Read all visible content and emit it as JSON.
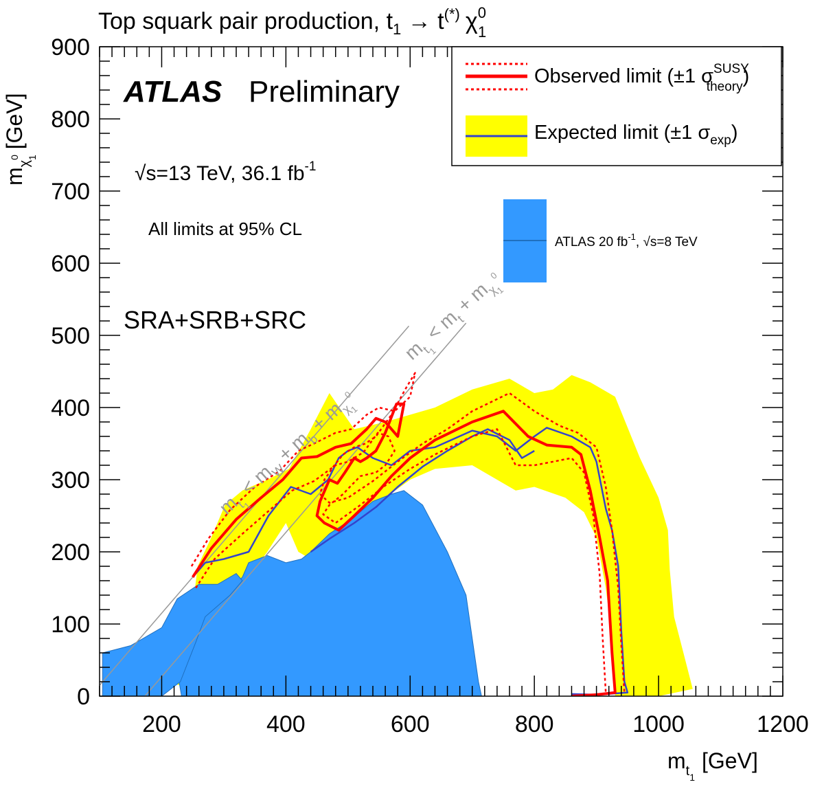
{
  "chart_data": {
    "type": "exclusion-contour",
    "title": {
      "prefix": "Top squark pair production, ",
      "stop": "t",
      "stop_sub": "1",
      "arrow": " → t",
      "tstar": "(*)",
      "chi": "χ",
      "chi_sup": "0",
      "chi_sub": "1"
    },
    "xlabel": {
      "main": "m",
      "sub": "t",
      "subsub": "1",
      "unit": "[GeV]"
    },
    "ylabel": {
      "main": "m",
      "sub": "χ",
      "subsup": "0",
      "subsub": "1",
      "unit": "[GeV]"
    },
    "xlim": [
      100,
      1200
    ],
    "ylim": [
      0,
      900
    ],
    "xticks": [
      200,
      400,
      600,
      800,
      1000,
      1200
    ],
    "xtick_labels": [
      "200",
      "400",
      "600",
      "800",
      "1000",
      "1200"
    ],
    "yticks": [
      0,
      100,
      200,
      300,
      400,
      500,
      600,
      700,
      800,
      900
    ],
    "ytick_labels": [
      "0",
      "100",
      "200",
      "300",
      "400",
      "500",
      "600",
      "700",
      "800",
      "900"
    ],
    "annotations": {
      "atlas": "ATLAS",
      "preliminary": "Preliminary",
      "energy_prefix": "√s=13 TeV, 36.1 fb",
      "energy_sup": "-1",
      "cl": "All limits at 95% CL",
      "regions": "SRA+SRB+SRC"
    },
    "legend": {
      "placement": "top-right",
      "observed": {
        "label": "Observed limit (±1 σ",
        "sup": "SUSY",
        "sub": "theory",
        "close": ")",
        "color": "#ff0000"
      },
      "expected": {
        "label": "Expected limit (±1 σ",
        "sub": "exp",
        "close": ")",
        "line_color": "#3344cc",
        "band_color": "#ffff00"
      },
      "prior": {
        "label": "ATLAS 20 fb",
        "sup": "-1",
        "suffix": ", √s=8 TeV",
        "color": "#3399ff"
      }
    },
    "kinematic_lines": [
      {
        "name": "mt-line",
        "label": "m",
        "label_sub": "t",
        "label_subsub": "1",
        "label_rest": " < m",
        "label_t": "t",
        "label_end": " + m",
        "label_chi": "χ",
        "label_chi_sub": "1",
        "label_chi_sup": "0",
        "offset_gev": 173,
        "x_range": [
          173,
          690
        ],
        "color": "#999999"
      },
      {
        "name": "mwb-line",
        "label": "m",
        "label_sub": "t",
        "label_subsub": "1",
        "label_rest": " < m",
        "label_w": "W",
        "label_mid": " + m",
        "label_b": "b",
        "label_end": " + m",
        "label_chi": "χ",
        "label_chi_sub": "1",
        "label_chi_sup": "0",
        "offset_gev": 85,
        "x_range": [
          85,
          598
        ],
        "color": "#999999"
      }
    ],
    "series": [
      {
        "name": "Expected limit band (±1σ exp)",
        "color": "#ffff00",
        "points": [
          [
            205,
            20
          ],
          [
            240,
            40
          ],
          [
            248,
            110
          ],
          [
            258,
            180
          ],
          [
            280,
            220
          ],
          [
            302,
            265
          ],
          [
            330,
            285
          ],
          [
            370,
            300
          ],
          [
            405,
            315
          ],
          [
            440,
            370
          ],
          [
            470,
            420
          ],
          [
            510,
            370
          ],
          [
            560,
            380
          ],
          [
            600,
            390
          ],
          [
            640,
            400
          ],
          [
            700,
            425
          ],
          [
            760,
            440
          ],
          [
            800,
            420
          ],
          [
            830,
            425
          ],
          [
            860,
            445
          ],
          [
            890,
            435
          ],
          [
            930,
            415
          ],
          [
            970,
            330
          ],
          [
            1000,
            275
          ],
          [
            1015,
            230
          ],
          [
            1018,
            175
          ],
          [
            1025,
            110
          ],
          [
            1040,
            60
          ],
          [
            1055,
            10
          ],
          [
            1000,
            0
          ],
          [
            930,
            0
          ],
          [
            925,
            80
          ],
          [
            915,
            150
          ],
          [
            900,
            220
          ],
          [
            880,
            255
          ],
          [
            850,
            275
          ],
          [
            800,
            290
          ],
          [
            770,
            285
          ],
          [
            700,
            320
          ],
          [
            640,
            315
          ],
          [
            600,
            300
          ],
          [
            560,
            275
          ],
          [
            520,
            250
          ],
          [
            480,
            205
          ],
          [
            440,
            190
          ],
          [
            420,
            200
          ],
          [
            400,
            240
          ],
          [
            370,
            200
          ],
          [
            340,
            165
          ],
          [
            320,
            140
          ],
          [
            290,
            110
          ],
          [
            270,
            75
          ],
          [
            250,
            45
          ],
          [
            230,
            15
          ]
        ]
      },
      {
        "name": "Expected limit",
        "color": "#3344cc",
        "points": [
          [
            250,
            165
          ],
          [
            270,
            185
          ],
          [
            300,
            190
          ],
          [
            340,
            200
          ],
          [
            372,
            250
          ],
          [
            408,
            290
          ],
          [
            440,
            280
          ],
          [
            468,
            300
          ],
          [
            485,
            330
          ],
          [
            500,
            340
          ],
          [
            515,
            345
          ],
          [
            540,
            330
          ],
          [
            570,
            320
          ],
          [
            600,
            340
          ],
          [
            640,
            345
          ],
          [
            700,
            368
          ],
          [
            740,
            360
          ],
          [
            770,
            340
          ],
          [
            800,
            360
          ],
          [
            820,
            372
          ],
          [
            860,
            360
          ],
          [
            890,
            345
          ],
          [
            900,
            325
          ],
          [
            915,
            260
          ],
          [
            925,
            230
          ],
          [
            935,
            180
          ],
          [
            940,
            90
          ],
          [
            945,
            20
          ],
          [
            950,
            5
          ],
          [
            900,
            2
          ],
          [
            860,
            3
          ]
        ]
      },
      {
        "name": "Expected limit (lower branch)",
        "color": "#3344cc",
        "points": [
          [
            440,
            200
          ],
          [
            470,
            218
          ],
          [
            510,
            240
          ],
          [
            545,
            262
          ],
          [
            580,
            290
          ],
          [
            620,
            318
          ],
          [
            660,
            340
          ],
          [
            700,
            360
          ],
          [
            725,
            370
          ],
          [
            760,
            355
          ],
          [
            780,
            330
          ],
          [
            800,
            340
          ]
        ]
      },
      {
        "name": "Observed limit",
        "color": "#ff0000",
        "points": [
          [
            250,
            165
          ],
          [
            280,
            205
          ],
          [
            320,
            245
          ],
          [
            360,
            275
          ],
          [
            395,
            300
          ],
          [
            425,
            330
          ],
          [
            450,
            332
          ],
          [
            480,
            345
          ],
          [
            505,
            350
          ],
          [
            530,
            370
          ],
          [
            545,
            385
          ],
          [
            560,
            380
          ],
          [
            580,
            360
          ],
          [
            590,
            405
          ],
          [
            578,
            405
          ],
          [
            560,
            365
          ],
          [
            545,
            340
          ],
          [
            530,
            330
          ],
          [
            520,
            325
          ],
          [
            510,
            330
          ],
          [
            495,
            310
          ],
          [
            483,
            295
          ],
          [
            470,
            300
          ],
          [
            455,
            270
          ],
          [
            450,
            250
          ],
          [
            462,
            240
          ],
          [
            485,
            230
          ],
          [
            510,
            250
          ],
          [
            540,
            275
          ],
          [
            570,
            305
          ],
          [
            600,
            330
          ],
          [
            640,
            355
          ],
          [
            700,
            380
          ],
          [
            750,
            395
          ],
          [
            790,
            360
          ],
          [
            820,
            348
          ],
          [
            860,
            345
          ],
          [
            875,
            335
          ],
          [
            890,
            285
          ],
          [
            905,
            220
          ],
          [
            918,
            160
          ],
          [
            925,
            60
          ],
          [
            930,
            5
          ],
          [
            900,
            2
          ],
          [
            860,
            0
          ]
        ]
      },
      {
        "name": "Observed limit −1σ theory",
        "color": "#ff0000",
        "dashed": true,
        "points": [
          [
            255,
            150
          ],
          [
            285,
            190
          ],
          [
            330,
            225
          ],
          [
            370,
            255
          ],
          [
            410,
            285
          ],
          [
            445,
            298
          ],
          [
            480,
            320
          ],
          [
            500,
            325
          ],
          [
            525,
            338
          ],
          [
            548,
            365
          ],
          [
            565,
            360
          ],
          [
            575,
            340
          ],
          [
            560,
            320
          ],
          [
            545,
            310
          ],
          [
            520,
            305
          ],
          [
            503,
            290
          ],
          [
            492,
            280
          ],
          [
            470,
            265
          ],
          [
            460,
            252
          ],
          [
            480,
            240
          ],
          [
            520,
            265
          ],
          [
            560,
            292
          ],
          [
            600,
            315
          ],
          [
            640,
            335
          ],
          [
            700,
            360
          ],
          [
            740,
            370
          ],
          [
            770,
            320
          ],
          [
            800,
            320
          ],
          [
            830,
            325
          ],
          [
            860,
            330
          ],
          [
            880,
            310
          ],
          [
            895,
            250
          ],
          [
            905,
            170
          ],
          [
            910,
            80
          ],
          [
            915,
            5
          ]
        ]
      },
      {
        "name": "Observed limit +1σ theory",
        "color": "#ff0000",
        "dashed": true,
        "points": [
          [
            248,
            180
          ],
          [
            275,
            218
          ],
          [
            310,
            258
          ],
          [
            350,
            290
          ],
          [
            390,
            312
          ],
          [
            420,
            340
          ],
          [
            445,
            350
          ],
          [
            480,
            365
          ],
          [
            505,
            370
          ],
          [
            530,
            390
          ],
          [
            550,
            400
          ],
          [
            575,
            395
          ],
          [
            600,
            415
          ],
          [
            608,
            448
          ],
          [
            592,
            425
          ],
          [
            570,
            390
          ],
          [
            545,
            360
          ],
          [
            528,
            350
          ],
          [
            510,
            345
          ],
          [
            492,
            335
          ],
          [
            478,
            320
          ],
          [
            462,
            300
          ],
          [
            455,
            280
          ],
          [
            470,
            268
          ],
          [
            500,
            275
          ],
          [
            540,
            298
          ],
          [
            580,
            325
          ],
          [
            620,
            350
          ],
          [
            660,
            370
          ],
          [
            700,
            395
          ],
          [
            760,
            420
          ],
          [
            800,
            395
          ],
          [
            840,
            375
          ],
          [
            870,
            365
          ],
          [
            900,
            345
          ],
          [
            915,
            290
          ],
          [
            925,
            230
          ],
          [
            935,
            150
          ],
          [
            940,
            70
          ],
          [
            945,
            5
          ]
        ]
      },
      {
        "name": "ATLAS 20 fb-1, √s=8 TeV",
        "color": "#3399ff",
        "points": [
          [
            180,
            0
          ],
          [
            195,
            0
          ],
          [
            200,
            20
          ],
          [
            230,
            60
          ],
          [
            262,
            110
          ],
          [
            300,
            140
          ],
          [
            330,
            165
          ],
          [
            340,
            185
          ],
          [
            370,
            195
          ],
          [
            400,
            185
          ],
          [
            425,
            190
          ],
          [
            440,
            200
          ],
          [
            470,
            225
          ],
          [
            505,
            245
          ],
          [
            540,
            270
          ],
          [
            570,
            280
          ],
          [
            590,
            285
          ],
          [
            620,
            265
          ],
          [
            660,
            200
          ],
          [
            690,
            140
          ],
          [
            700,
            80
          ],
          [
            710,
            20
          ],
          [
            715,
            0
          ],
          [
            232,
            0
          ],
          [
            228,
            20
          ],
          [
            200,
            30
          ],
          [
            190,
            20
          ]
        ]
      },
      {
        "name": "ATLAS 20 fb-1 region (low mass)",
        "color": "#3399ff",
        "points": [
          [
            105,
            0
          ],
          [
            105,
            60
          ],
          [
            150,
            70
          ],
          [
            200,
            95
          ],
          [
            225,
            135
          ],
          [
            260,
            155
          ],
          [
            290,
            155
          ],
          [
            320,
            170
          ],
          [
            330,
            160
          ],
          [
            310,
            140
          ],
          [
            270,
            110
          ],
          [
            255,
            75
          ],
          [
            230,
            20
          ],
          [
            200,
            0
          ]
        ]
      }
    ],
    "grid": false
  }
}
